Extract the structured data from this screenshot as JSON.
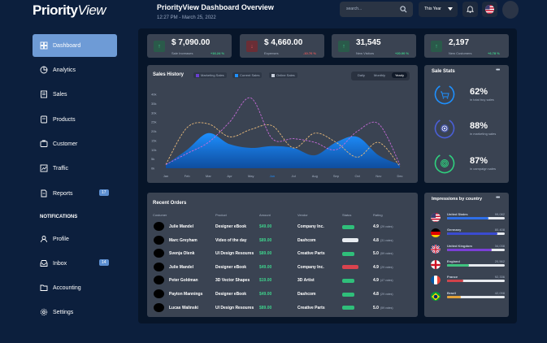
{
  "brand": {
    "part1": "Priority",
    "part2": "View"
  },
  "header": {
    "title": "PriorityView Dashboard Overview",
    "subtitle": "12:27 PM - March 25, 2022"
  },
  "search": {
    "placeholder": "search..."
  },
  "period": {
    "selected": "This Year"
  },
  "sidebar": {
    "items": [
      {
        "label": "Dashboard",
        "icon": "dashboard-icon"
      },
      {
        "label": "Analytics",
        "icon": "pie-chart-icon"
      },
      {
        "label": "Sales",
        "icon": "receipt-icon"
      },
      {
        "label": "Products",
        "icon": "product-icon"
      },
      {
        "label": "Customer",
        "icon": "customer-icon"
      },
      {
        "label": "Traffic",
        "icon": "traffic-icon"
      },
      {
        "label": "Reports",
        "icon": "report-icon",
        "badge": "17"
      }
    ],
    "section": "NOTIFICATIONS",
    "items2": [
      {
        "label": "Profile",
        "icon": "user-icon"
      },
      {
        "label": "Inbox",
        "icon": "inbox-icon",
        "badge": "14"
      },
      {
        "label": "Accounting",
        "icon": "folder-icon"
      },
      {
        "label": "Settings",
        "icon": "gear-icon"
      }
    ]
  },
  "kpis": [
    {
      "value": "$ 7,090.00",
      "label": "Sale Increases",
      "change": "+16.24 %",
      "dir": "up",
      "color": "#3ed08b"
    },
    {
      "value": "$ 4,660.00",
      "label": "Expenses",
      "change": "-10.76 %",
      "dir": "down",
      "color": "#e05a5a"
    },
    {
      "value": "31,545",
      "label": "New Visitors",
      "change": "+20.00 %",
      "dir": "up",
      "color": "#3ed08b"
    },
    {
      "value": "2,197",
      "label": "New Customers",
      "change": "+6.78 %",
      "dir": "up",
      "color": "#3ed08b"
    }
  ],
  "sales_history": {
    "title": "Sales History",
    "legend": [
      "Marketing Sales",
      "Current Sales",
      "Online Sales"
    ],
    "tabs": [
      "Daily",
      "Monthly",
      "Yearly"
    ],
    "active_tab": "Yearly"
  },
  "chart_data": {
    "type": "area",
    "title": "Sales History",
    "categories": [
      "Jan",
      "Feb",
      "Mar",
      "Apr",
      "May",
      "Jun",
      "Jul",
      "Aug",
      "Sep",
      "Oct",
      "Nov",
      "Dec"
    ],
    "ylim": [
      0,
      40
    ],
    "yticks": [
      "0k",
      "5k",
      "10k",
      "15k",
      "20k",
      "25k",
      "30k",
      "35k",
      "40k"
    ],
    "highlight_category": "Jun",
    "series": [
      {
        "name": "Current Sales",
        "style": "filled-area",
        "color": "#1e90ff",
        "values": [
          2,
          10,
          19,
          13,
          11,
          12,
          11,
          7,
          14,
          17,
          7,
          2
        ]
      },
      {
        "name": "Marketing Sales",
        "style": "dashed-line",
        "color": "#e8b97a",
        "values": [
          2,
          22,
          24,
          17,
          21,
          23,
          11,
          19,
          14,
          6,
          14,
          1
        ]
      },
      {
        "name": "Online Sales",
        "style": "dashed-line",
        "color": "#c76bd8",
        "values": [
          2,
          8,
          14,
          25,
          38,
          16,
          16,
          14,
          10,
          20,
          24,
          2
        ]
      }
    ]
  },
  "sale_stats": {
    "title": "Sale Stats",
    "items": [
      {
        "value": "62%",
        "label": "in total buy sales",
        "icon": "cart-icon",
        "color": "#1e90ff"
      },
      {
        "value": "88%",
        "label": "in marketing sales",
        "icon": "target-icon",
        "color": "#4a5fd8"
      },
      {
        "value": "87%",
        "label": "in campaign sales",
        "icon": "spiral-icon",
        "color": "#2fd17e"
      }
    ]
  },
  "orders": {
    "title": "Recent Orders",
    "columns": [
      "Costumer",
      "Product",
      "Amount",
      "Vendor",
      "Status",
      "Rating"
    ],
    "rows": [
      {
        "customer": "Julie Mandel",
        "product": "Designer eBook",
        "amount": "$49.00",
        "vendor": "Company Inc.",
        "status_color": "#2fbf7a",
        "rating": "4.9",
        "votes": "(29 votes)"
      },
      {
        "customer": "Marc Greyham",
        "product": "Video of the day",
        "amount": "$89.00",
        "vendor": "Dashcom",
        "status_color": "#e8ecf1",
        "rating": "4.8",
        "votes": "(31 votes)"
      },
      {
        "customer": "Svenja Olenk",
        "product": "UI Design Resoures",
        "amount": "$89.00",
        "vendor": "Creative Parts",
        "status_color": "#2fbf7a",
        "rating": "5.0",
        "votes": "(59 votes)"
      },
      {
        "customer": "Julie Mandel",
        "product": "Designer eBook",
        "amount": "$49.00",
        "vendor": "Company Inc.",
        "status_color": "#d9434e",
        "rating": "4.9",
        "votes": "(29 votes)"
      },
      {
        "customer": "Peter Goldman",
        "product": "3D Vector Shapes",
        "amount": "$19.00",
        "vendor": "3D Artist",
        "status_color": "#2fbf7a",
        "rating": "4.9",
        "votes": "(47 votes)"
      },
      {
        "customer": "Payton Mannings",
        "product": "Designer eBook",
        "amount": "$49.00",
        "vendor": "Dashcom",
        "status_color": "#2fbf7a",
        "rating": "4.8",
        "votes": "(29 votes)"
      },
      {
        "customer": "Lucas Walinski",
        "product": "UI Design Resoures",
        "amount": "$89.00",
        "vendor": "Creative Parts",
        "status_color": "#2fbf7a",
        "rating": "5.0",
        "votes": "(59 votes)"
      }
    ]
  },
  "countries": {
    "title": "Impressions by country",
    "items": [
      {
        "name": "United States",
        "value": "99,082",
        "fill": 0.72,
        "color": "#2f6fe8",
        "flag": "us"
      },
      {
        "name": "Germany",
        "value": "80,408",
        "fill": 0.88,
        "color": "#3a4bd0",
        "flag": "de"
      },
      {
        "name": "United Kingdom",
        "value": "34,038",
        "fill": 0.78,
        "color": "#7a3fd6",
        "flag": "gb"
      },
      {
        "name": "England",
        "value": "20,562",
        "fill": 0.38,
        "color": "#3fc27e",
        "flag": "en"
      },
      {
        "name": "France",
        "value": "92,336",
        "fill": 0.28,
        "color": "#d0424a",
        "flag": "fr"
      },
      {
        "name": "Brazil",
        "value": "42,098",
        "fill": 0.24,
        "color": "#e2a23a",
        "flag": "br"
      }
    ]
  }
}
